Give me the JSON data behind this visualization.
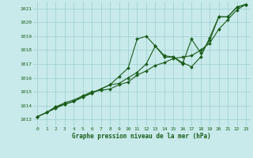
{
  "xlabel": "Graphe pression niveau de la mer (hPa)",
  "background_color": "#c8eaea",
  "grid_color": "#9ecece",
  "line_color": "#1a5c1a",
  "marker_color": "#1a5c1a",
  "ylim": [
    1012.5,
    1021.5
  ],
  "xlim": [
    -0.5,
    23.5
  ],
  "yticks": [
    1013,
    1014,
    1015,
    1016,
    1017,
    1018,
    1019,
    1020,
    1021
  ],
  "xticks": [
    0,
    1,
    2,
    3,
    4,
    5,
    6,
    7,
    8,
    9,
    10,
    11,
    12,
    13,
    14,
    15,
    16,
    17,
    18,
    19,
    20,
    21,
    22,
    23
  ],
  "series1_x": [
    0,
    1,
    2,
    3,
    4,
    5,
    6,
    7,
    8,
    9,
    10,
    11,
    12,
    13,
    14,
    15,
    16,
    17,
    18,
    19,
    20,
    21,
    22,
    23
  ],
  "series1_y": [
    1013.2,
    1013.5,
    1013.8,
    1014.1,
    1014.3,
    1014.6,
    1014.9,
    1015.2,
    1015.5,
    1016.1,
    1016.7,
    1018.8,
    1019.0,
    1018.3,
    1017.6,
    1017.5,
    1017.1,
    1016.8,
    1017.5,
    1018.9,
    1020.4,
    1020.4,
    1021.1,
    1021.3
  ],
  "series2_x": [
    0,
    1,
    2,
    3,
    4,
    5,
    6,
    7,
    8,
    9,
    10,
    11,
    12,
    13,
    14,
    15,
    16,
    17,
    18,
    19,
    20,
    21,
    22,
    23
  ],
  "series2_y": [
    1013.2,
    1013.5,
    1013.9,
    1014.2,
    1014.4,
    1014.7,
    1015.0,
    1015.1,
    1015.2,
    1015.5,
    1015.7,
    1016.2,
    1016.5,
    1016.9,
    1017.1,
    1017.4,
    1017.5,
    1017.6,
    1018.0,
    1018.5,
    1019.5,
    1020.2,
    1020.9,
    1021.3
  ],
  "series3_x": [
    0,
    1,
    2,
    3,
    4,
    5,
    6,
    7,
    8,
    9,
    10,
    11,
    12,
    13,
    14,
    15,
    16,
    17,
    18,
    19,
    20,
    21,
    22,
    23
  ],
  "series3_y": [
    1013.2,
    1013.5,
    1013.9,
    1014.1,
    1014.3,
    1014.7,
    1014.9,
    1015.2,
    1015.5,
    1015.6,
    1016.0,
    1016.4,
    1017.0,
    1018.3,
    1017.5,
    1017.5,
    1017.0,
    1018.8,
    1017.8,
    1018.7,
    1020.4,
    1020.4,
    1021.1,
    1021.3
  ]
}
